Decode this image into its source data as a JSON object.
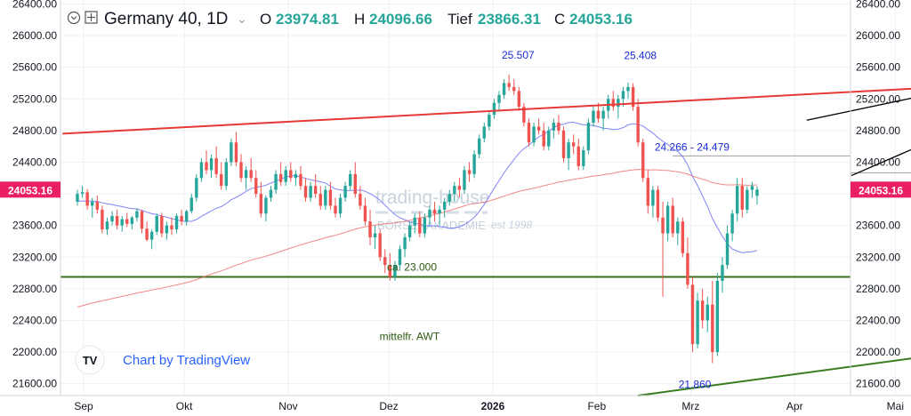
{
  "header": {
    "symbol": "Germany 40, 1D",
    "o_label": "O",
    "o_value": "23974.81",
    "h_label": "H",
    "h_value": "24096.66",
    "l_label": "Tief",
    "l_value": "23866.31",
    "c_label": "C",
    "c_value": "24053.16",
    "value_color": "#26a69a",
    "chevron_glyph": "⌄"
  },
  "watermark": {
    "brand": "trading-house",
    "academy": "BÖRSENAKADEMIE",
    "est": "est 1998",
    "attribution": "Chart by TradingView"
  },
  "chart_data": {
    "type": "candlestick",
    "ylim": [
      21450,
      26450
    ],
    "y_ticks": [
      21600,
      22000,
      22400,
      22800,
      23200,
      23600,
      24000,
      24400,
      24800,
      25200,
      25600,
      26000,
      26400
    ],
    "y_tick_labels": [
      "21600.00",
      "22000.00",
      "22400.00",
      "22800.00",
      "23200.00",
      "23600.00",
      "24000.00",
      "24400.00",
      "24800.00",
      "25200.00",
      "25600.00",
      "26000.00",
      "26400.00"
    ],
    "x_ticks": [
      {
        "label": "Sep",
        "day": 0
      },
      {
        "label": "Okt",
        "day": 30
      },
      {
        "label": "Nov",
        "day": 61
      },
      {
        "label": "Dez",
        "day": 91
      },
      {
        "label": "2026",
        "day": 122,
        "bold": true
      },
      {
        "label": "Feb",
        "day": 153
      },
      {
        "label": "Mrz",
        "day": 181
      },
      {
        "label": "Apr",
        "day": 212
      },
      {
        "label": "Mai",
        "day": 242
      }
    ],
    "price_label": "24053.16",
    "price_label_color": "#e91e63",
    "up_color": "#26a69a",
    "down_color": "#ef5350",
    "candles": [
      [
        23900,
        24050,
        23850,
        24000
      ],
      [
        24000,
        24100,
        23950,
        24020
      ],
      [
        24020,
        24060,
        23800,
        23850
      ],
      [
        23850,
        23950,
        23700,
        23900
      ],
      [
        23900,
        23980,
        23750,
        23800
      ],
      [
        23800,
        23850,
        23500,
        23550
      ],
      [
        23550,
        23700,
        23480,
        23650
      ],
      [
        23650,
        23780,
        23600,
        23720
      ],
      [
        23720,
        23800,
        23550,
        23600
      ],
      [
        23600,
        23720,
        23520,
        23680
      ],
      [
        23680,
        23760,
        23580,
        23620
      ],
      [
        23620,
        23720,
        23550,
        23700
      ],
      [
        23700,
        23820,
        23650,
        23780
      ],
      [
        23780,
        23800,
        23500,
        23560
      ],
      [
        23560,
        23650,
        23400,
        23420
      ],
      [
        23420,
        23550,
        23300,
        23520
      ],
      [
        23520,
        23750,
        23480,
        23720
      ],
      [
        23720,
        23760,
        23450,
        23500
      ],
      [
        23500,
        23650,
        23420,
        23600
      ],
      [
        23600,
        23700,
        23480,
        23550
      ],
      [
        23550,
        23750,
        23500,
        23720
      ],
      [
        23720,
        23800,
        23600,
        23650
      ],
      [
        23650,
        23800,
        23600,
        23780
      ],
      [
        23780,
        24000,
        23750,
        23950
      ],
      [
        23950,
        24250,
        23900,
        24200
      ],
      [
        24200,
        24450,
        24150,
        24400
      ],
      [
        24400,
        24550,
        24250,
        24300
      ],
      [
        24300,
        24500,
        24200,
        24450
      ],
      [
        24450,
        24600,
        24200,
        24250
      ],
      [
        24250,
        24400,
        24050,
        24100
      ],
      [
        24100,
        24450,
        24050,
        24400
      ],
      [
        24400,
        24700,
        24350,
        24650
      ],
      [
        24650,
        24780,
        24350,
        24400
      ],
      [
        24400,
        24500,
        24150,
        24200
      ],
      [
        24200,
        24350,
        24050,
        24300
      ],
      [
        24300,
        24450,
        24150,
        24200
      ],
      [
        24200,
        24300,
        23950,
        24000
      ],
      [
        24000,
        24150,
        23700,
        23750
      ],
      [
        23750,
        23980,
        23650,
        23950
      ],
      [
        23950,
        24100,
        23900,
        24050
      ],
      [
        24050,
        24300,
        24000,
        24250
      ],
      [
        24250,
        24400,
        24100,
        24150
      ],
      [
        24150,
        24350,
        24100,
        24300
      ],
      [
        24300,
        24400,
        24150,
        24200
      ],
      [
        24200,
        24300,
        24100,
        24250
      ],
      [
        24250,
        24350,
        24050,
        24100
      ],
      [
        24100,
        24200,
        23900,
        23950
      ],
      [
        23950,
        24150,
        23900,
        24100
      ],
      [
        24100,
        24250,
        23950,
        24000
      ],
      [
        24000,
        24100,
        23800,
        23850
      ],
      [
        23850,
        24100,
        23800,
        24050
      ],
      [
        24050,
        24150,
        23800,
        23850
      ],
      [
        23850,
        23950,
        23700,
        23750
      ],
      [
        23750,
        24000,
        23700,
        23950
      ],
      [
        23950,
        24150,
        23900,
        24100
      ],
      [
        24100,
        24300,
        24050,
        24250
      ],
      [
        24250,
        24400,
        23950,
        24000
      ],
      [
        24000,
        24100,
        23800,
        23850
      ],
      [
        23850,
        23950,
        23600,
        23650
      ],
      [
        23650,
        23800,
        23350,
        23450
      ],
      [
        23450,
        23600,
        23300,
        23500
      ],
      [
        23500,
        23550,
        23150,
        23200
      ],
      [
        23200,
        23300,
        23000,
        23100
      ],
      [
        23100,
        23250,
        22900,
        22950
      ],
      [
        22950,
        23150,
        22900,
        23100
      ],
      [
        23100,
        23350,
        23050,
        23300
      ],
      [
        23300,
        23500,
        23200,
        23450
      ],
      [
        23450,
        23650,
        23400,
        23600
      ],
      [
        23600,
        23750,
        23500,
        23700
      ],
      [
        23700,
        23780,
        23450,
        23500
      ],
      [
        23500,
        23750,
        23450,
        23700
      ],
      [
        23700,
        23850,
        23600,
        23800
      ],
      [
        23800,
        23900,
        23650,
        23750
      ],
      [
        23750,
        23850,
        23600,
        23800
      ],
      [
        23800,
        23950,
        23700,
        23900
      ],
      [
        23900,
        24050,
        23850,
        24000
      ],
      [
        24000,
        24150,
        23900,
        24100
      ],
      [
        24100,
        24200,
        23950,
        24050
      ],
      [
        24050,
        24350,
        24000,
        24300
      ],
      [
        24300,
        24400,
        24150,
        24250
      ],
      [
        24250,
        24550,
        24200,
        24500
      ],
      [
        24500,
        24750,
        24450,
        24700
      ],
      [
        24700,
        24900,
        24650,
        24850
      ],
      [
        24850,
        25050,
        24800,
        25000
      ],
      [
        25000,
        25200,
        24950,
        25150
      ],
      [
        25150,
        25300,
        25050,
        25250
      ],
      [
        25250,
        25450,
        25200,
        25400
      ],
      [
        25400,
        25507,
        25300,
        25350
      ],
      [
        25350,
        25450,
        25250,
        25300
      ],
      [
        25300,
        25350,
        25050,
        25100
      ],
      [
        25100,
        25150,
        24850,
        24900
      ],
      [
        24900,
        24950,
        24600,
        24650
      ],
      [
        24650,
        24900,
        24600,
        24850
      ],
      [
        24850,
        24950,
        24750,
        24800
      ],
      [
        24800,
        24900,
        24550,
        24600
      ],
      [
        24600,
        24850,
        24550,
        24800
      ],
      [
        24800,
        24950,
        24700,
        24900
      ],
      [
        24900,
        25000,
        24750,
        24800
      ],
      [
        24800,
        24850,
        24400,
        24450
      ],
      [
        24450,
        24700,
        24300,
        24650
      ],
      [
        24650,
        24750,
        24500,
        24600
      ],
      [
        24600,
        24700,
        24300,
        24350
      ],
      [
        24350,
        24600,
        24300,
        24550
      ],
      [
        24550,
        24950,
        24500,
        24900
      ],
      [
        24900,
        25100,
        24850,
        25050
      ],
      [
        25050,
        25150,
        24900,
        24950
      ],
      [
        24950,
        25100,
        24800,
        25050
      ],
      [
        25050,
        25250,
        24950,
        25200
      ],
      [
        25200,
        25300,
        25050,
        25100
      ],
      [
        25100,
        25250,
        24950,
        25200
      ],
      [
        25200,
        25350,
        25100,
        25300
      ],
      [
        25300,
        25408,
        25200,
        25350
      ],
      [
        25350,
        25400,
        25050,
        25100
      ],
      [
        25100,
        25200,
        24600,
        24650
      ],
      [
        24650,
        24700,
        24150,
        24200
      ],
      [
        24200,
        24300,
        23750,
        23850
      ],
      [
        23850,
        24100,
        23700,
        24050
      ],
      [
        24050,
        24100,
        23650,
        23700
      ],
      [
        23700,
        23900,
        22700,
        23500
      ],
      [
        23500,
        23900,
        23400,
        23850
      ],
      [
        23850,
        23950,
        23450,
        23500
      ],
      [
        23500,
        23700,
        23350,
        23650
      ],
      [
        23650,
        23700,
        23200,
        23250
      ],
      [
        23250,
        23450,
        22800,
        22850
      ],
      [
        22850,
        22950,
        22000,
        22100
      ],
      [
        22100,
        22750,
        22050,
        22650
      ],
      [
        22650,
        22800,
        22300,
        22400
      ],
      [
        22400,
        22700,
        22250,
        22600
      ],
      [
        22600,
        22900,
        21860,
        22000
      ],
      [
        22000,
        23000,
        21950,
        22900
      ],
      [
        22900,
        23200,
        22750,
        23100
      ],
      [
        23100,
        23600,
        23050,
        23500
      ],
      [
        23500,
        23800,
        23400,
        23750
      ],
      [
        23750,
        24200,
        23650,
        24100
      ],
      [
        24100,
        24200,
        23700,
        23800
      ],
      [
        23800,
        24100,
        23750,
        24050
      ],
      [
        24050,
        24150,
        23950,
        24100
      ],
      [
        23974.81,
        24096.66,
        23866.31,
        24053.16
      ]
    ],
    "levels": [
      {
        "name": "horizontal-support",
        "value": 22950,
        "label": "ca. 23.000",
        "color": "#3a6e1a"
      },
      {
        "name": "resistance-line-upper",
        "value": 24479,
        "color": "#9e9e9e"
      },
      {
        "name": "resistance-line-lower",
        "value": 24266,
        "color": "#9e9e9e"
      }
    ],
    "annotations": {
      "high_jan": "25.507",
      "high_feb": "25.408",
      "low_mar": "21.860",
      "resistance_zone": "24.266 - 24.479",
      "support_label": "ca. 23.000",
      "trend_label": "mittelfr. AWT"
    },
    "trendlines": [
      {
        "name": "red-upper-trendline",
        "color": "#e53935",
        "from": [
          -3,
          24760
        ],
        "to": [
          253,
          25610
        ]
      },
      {
        "name": "green-long-trendline",
        "color": "#3a7d1e",
        "from": [
          113,
          21450
        ],
        "to": [
          262,
          22720
        ]
      },
      {
        "name": "black-wedge-upper",
        "color": "#000000",
        "from": [
          147,
          24930
        ],
        "to": [
          197,
          25590
        ]
      },
      {
        "name": "black-wedge-lower",
        "color": "#000000",
        "from": [
          156,
          24230
        ],
        "to": [
          199,
          25400
        ]
      },
      {
        "name": "red-steep-down",
        "color": "#e53935",
        "from": [
          180,
          25400
        ],
        "to": [
          224,
          22570
        ]
      },
      {
        "name": "green-steep-up",
        "color": "#3a7d1e",
        "from": [
          212,
          21950
        ],
        "to": [
          230,
          24150
        ]
      }
    ],
    "gray_segments": [
      {
        "name": "resistance-segment-upper",
        "value": 24479,
        "from": 120,
        "to": 265
      },
      {
        "name": "resistance-segment-lower",
        "value": 24266,
        "from": 170,
        "to": 265
      }
    ]
  }
}
